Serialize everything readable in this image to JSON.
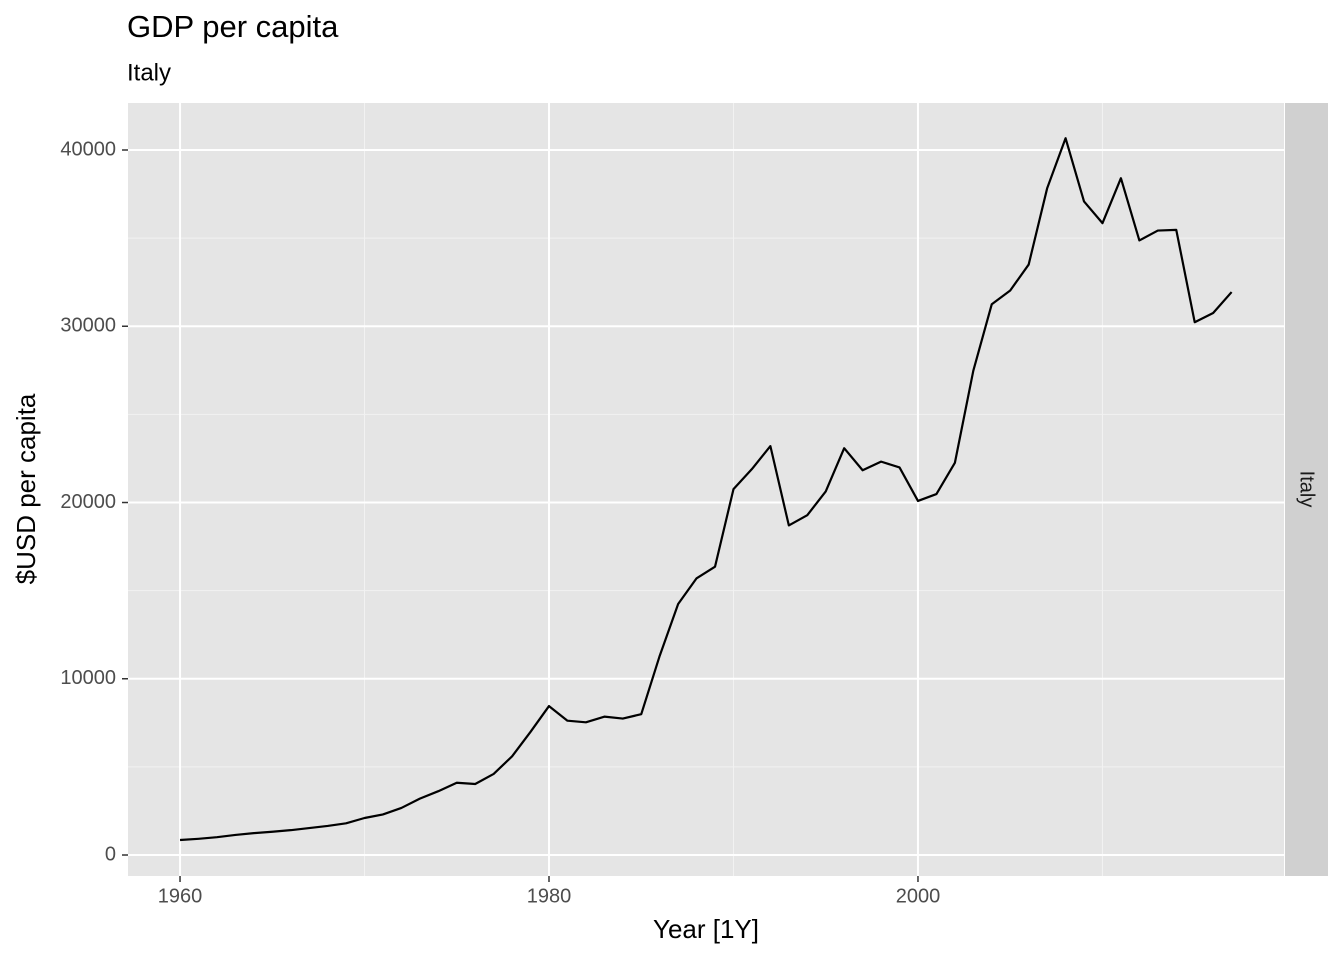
{
  "chart_data": {
    "type": "line",
    "title": "GDP per capita",
    "subtitle": "Italy",
    "facet_label": "Italy",
    "x_label": "Year [1Y]",
    "y_label": "$USD per capita",
    "x": [
      1960,
      1961,
      1962,
      1963,
      1964,
      1965,
      1966,
      1967,
      1968,
      1969,
      1970,
      1971,
      1972,
      1973,
      1974,
      1975,
      1976,
      1977,
      1978,
      1979,
      1980,
      1981,
      1982,
      1983,
      1984,
      1985,
      1986,
      1987,
      1988,
      1989,
      1990,
      1991,
      1992,
      1993,
      1994,
      1995,
      1996,
      1997,
      1998,
      1999,
      2000,
      2001,
      2002,
      2003,
      2004,
      2005,
      2006,
      2007,
      2008,
      2009,
      2010,
      2011,
      2012,
      2013,
      2014,
      2015,
      2016,
      2017
    ],
    "series": [
      {
        "name": "Italy",
        "color": "#000000",
        "values": [
          850,
          920,
          1010,
          1140,
          1240,
          1320,
          1410,
          1530,
          1650,
          1800,
          2100,
          2300,
          2670,
          3200,
          3620,
          4100,
          4030,
          4600,
          5600,
          6990,
          8450,
          7620,
          7530,
          7850,
          7740,
          7990,
          11300,
          14240,
          15700,
          16360,
          20760,
          21900,
          23200,
          18700,
          19280,
          20630,
          23080,
          21830,
          22320,
          21990,
          20090,
          20480,
          22250,
          27480,
          31250,
          32030,
          33500,
          37820,
          40670,
          37080,
          35850,
          38400,
          34870,
          35430,
          35470,
          30230,
          30750,
          31940
        ]
      }
    ],
    "xlim": [
      1957.18,
      2019.84
    ],
    "ylim": [
      -1191,
      42667
    ],
    "xticks": [
      1960,
      1980,
      2000
    ],
    "yticks": [
      0,
      10000,
      20000,
      30000,
      40000
    ],
    "x_minor_ticks": [
      1970,
      1990,
      2010
    ],
    "y_minor_ticks": [
      5000,
      15000,
      25000,
      35000
    ],
    "grid": true
  }
}
